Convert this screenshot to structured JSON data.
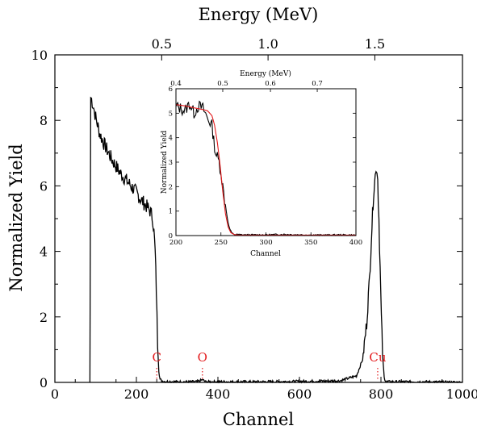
{
  "chart_data": {
    "type": "line",
    "xlabel": "Channel",
    "ylabel": "Normalized Yield",
    "top_xlabel": "Energy (MeV)",
    "xlim": [
      0,
      1000
    ],
    "ylim": [
      0,
      10
    ],
    "xticks": [
      0,
      200,
      400,
      600,
      800,
      1000
    ],
    "yticks": [
      0,
      2,
      4,
      6,
      8,
      10
    ],
    "top_ticks": [
      {
        "channel": 262,
        "label": "0.5"
      },
      {
        "channel": 523,
        "label": "1.0"
      },
      {
        "channel": 785,
        "label": "1.5"
      }
    ],
    "grid": false,
    "line_color": "#000000",
    "series": [
      {
        "x": [
          86,
          88,
          90,
          95,
          100,
          110,
          120,
          130,
          140,
          150,
          160,
          170,
          180,
          190,
          200,
          210,
          220,
          230,
          235,
          240,
          243,
          246,
          249,
          252,
          255,
          258,
          262,
          270,
          300,
          350,
          362,
          370,
          400,
          500,
          600,
          700,
          740,
          755,
          765,
          772,
          778,
          782,
          786,
          788,
          790,
          792,
          795,
          798,
          801,
          804,
          808,
          812,
          820,
          900,
          1000
        ],
        "y": [
          0,
          8.7,
          8.65,
          8.4,
          8.1,
          7.6,
          7.3,
          7.05,
          6.8,
          6.6,
          6.4,
          6.25,
          6.1,
          5.95,
          5.8,
          5.6,
          5.45,
          5.3,
          5.2,
          5.0,
          4.6,
          4.0,
          2.8,
          1.2,
          0.35,
          0.1,
          0.05,
          0.03,
          0.02,
          0.02,
          0.08,
          0.02,
          0.02,
          0.02,
          0.03,
          0.05,
          0.2,
          0.7,
          1.8,
          3.2,
          4.8,
          5.8,
          6.3,
          6.6,
          6.5,
          6.2,
          5.0,
          3.5,
          2.0,
          0.8,
          0.15,
          0.03,
          0.02,
          0.02,
          0
        ]
      }
    ],
    "element_markers": [
      {
        "label": "C",
        "channel": 250,
        "color": "#e31a1c"
      },
      {
        "label": "O",
        "channel": 362,
        "color": "#e31a1c"
      },
      {
        "label": "Cu",
        "channel": 792,
        "color": "#e31a1c"
      }
    ],
    "inset": {
      "type": "line",
      "xlabel": "Channel",
      "ylabel": "Normalized Yield",
      "top_xlabel": "Energy (MeV)",
      "xlim": [
        200,
        400
      ],
      "ylim": [
        0,
        6
      ],
      "xticks": [
        200,
        250,
        300,
        350,
        400
      ],
      "yticks": [
        0,
        1,
        2,
        3,
        4,
        5,
        6
      ],
      "top_ticks": [
        {
          "channel": 200,
          "label": "0.4"
        },
        {
          "channel": 252,
          "label": "0.5"
        },
        {
          "channel": 305,
          "label": "0.6"
        },
        {
          "channel": 357,
          "label": "0.7"
        }
      ],
      "series": [
        {
          "color": "#000000",
          "x": [
            200,
            205,
            210,
            215,
            220,
            225,
            230,
            235,
            240,
            242,
            244,
            246,
            248,
            250,
            252,
            254,
            256,
            258,
            260,
            262,
            265,
            270,
            280,
            300,
            320,
            340,
            360,
            380,
            400
          ],
          "y": [
            5.3,
            5.2,
            5.1,
            5.4,
            5.0,
            5.3,
            5.2,
            4.8,
            4.5,
            3.9,
            3.4,
            3.2,
            3.0,
            2.6,
            2.0,
            1.5,
            1.0,
            0.5,
            0.25,
            0.1,
            0.05,
            0.04,
            0.03,
            0.03,
            0.05,
            0.03,
            0.02,
            0.03,
            0.02
          ]
        },
        {
          "color": "#e31a1c",
          "x": [
            200,
            210,
            220,
            230,
            235,
            240,
            243,
            246,
            249,
            252,
            255,
            258,
            261,
            265,
            270,
            280,
            300,
            340,
            400
          ],
          "y": [
            5.35,
            5.3,
            5.22,
            5.15,
            5.1,
            4.9,
            4.5,
            3.8,
            2.9,
            1.8,
            0.9,
            0.35,
            0.12,
            0.04,
            0.02,
            0.02,
            0.02,
            0.02,
            0.02
          ]
        }
      ]
    }
  }
}
